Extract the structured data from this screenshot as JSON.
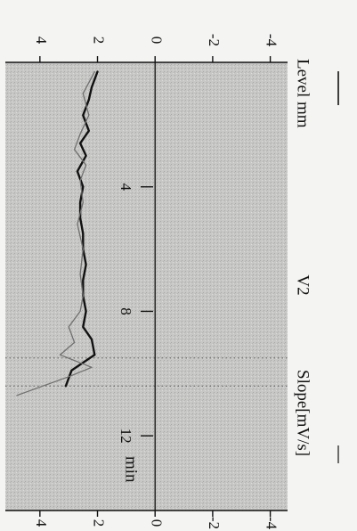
{
  "chart_data": {
    "type": "line",
    "orientation": "rotated-90-clockwise",
    "title": "V2",
    "xlabel": "min",
    "ylabel_left_axis": "Level mm",
    "ylabel_right_axis": "Slope[mV/s]",
    "xlim": [
      0,
      14.4
    ],
    "ylim": [
      -4.6,
      5.2
    ],
    "x_ticks": [
      4,
      8,
      12
    ],
    "y_ticks_left": [
      "-4",
      "-2",
      "0",
      "2",
      "4"
    ],
    "y_ticks_right": [
      "-4",
      "-2",
      "0",
      "2",
      "4"
    ],
    "grid": false,
    "background": "stippled-gray",
    "markers_x": [
      9.5,
      10.4
    ],
    "series": [
      {
        "color": "#111111",
        "width": 2.4,
        "points": [
          [
            0.3,
            2.0
          ],
          [
            0.8,
            2.2
          ],
          [
            1.2,
            2.3
          ],
          [
            1.7,
            2.5
          ],
          [
            2.2,
            2.3
          ],
          [
            2.6,
            2.6
          ],
          [
            3.0,
            2.4
          ],
          [
            3.5,
            2.7
          ],
          [
            4.0,
            2.5
          ],
          [
            4.5,
            2.6
          ],
          [
            5.0,
            2.6
          ],
          [
            5.5,
            2.5
          ],
          [
            6.0,
            2.5
          ],
          [
            6.5,
            2.4
          ],
          [
            7.0,
            2.5
          ],
          [
            7.5,
            2.5
          ],
          [
            8.0,
            2.4
          ],
          [
            8.5,
            2.5
          ],
          [
            8.9,
            2.2
          ],
          [
            9.4,
            2.1
          ],
          [
            9.9,
            2.9
          ],
          [
            10.4,
            3.1
          ]
        ]
      },
      {
        "color": "#6f6f6f",
        "width": 1.3,
        "points": [
          [
            0.3,
            2.1
          ],
          [
            1.0,
            2.5
          ],
          [
            1.7,
            2.3
          ],
          [
            2.3,
            2.6
          ],
          [
            2.8,
            2.8
          ],
          [
            3.3,
            2.4
          ],
          [
            3.8,
            2.6
          ],
          [
            4.5,
            2.5
          ],
          [
            5.2,
            2.7
          ],
          [
            6.0,
            2.5
          ],
          [
            6.8,
            2.6
          ],
          [
            7.5,
            2.5
          ],
          [
            8.0,
            2.6
          ],
          [
            8.5,
            3.0
          ],
          [
            9.0,
            2.8
          ],
          [
            9.4,
            3.3
          ],
          [
            9.8,
            2.2
          ],
          [
            10.1,
            3.0
          ],
          [
            10.7,
            4.8
          ]
        ]
      }
    ]
  }
}
